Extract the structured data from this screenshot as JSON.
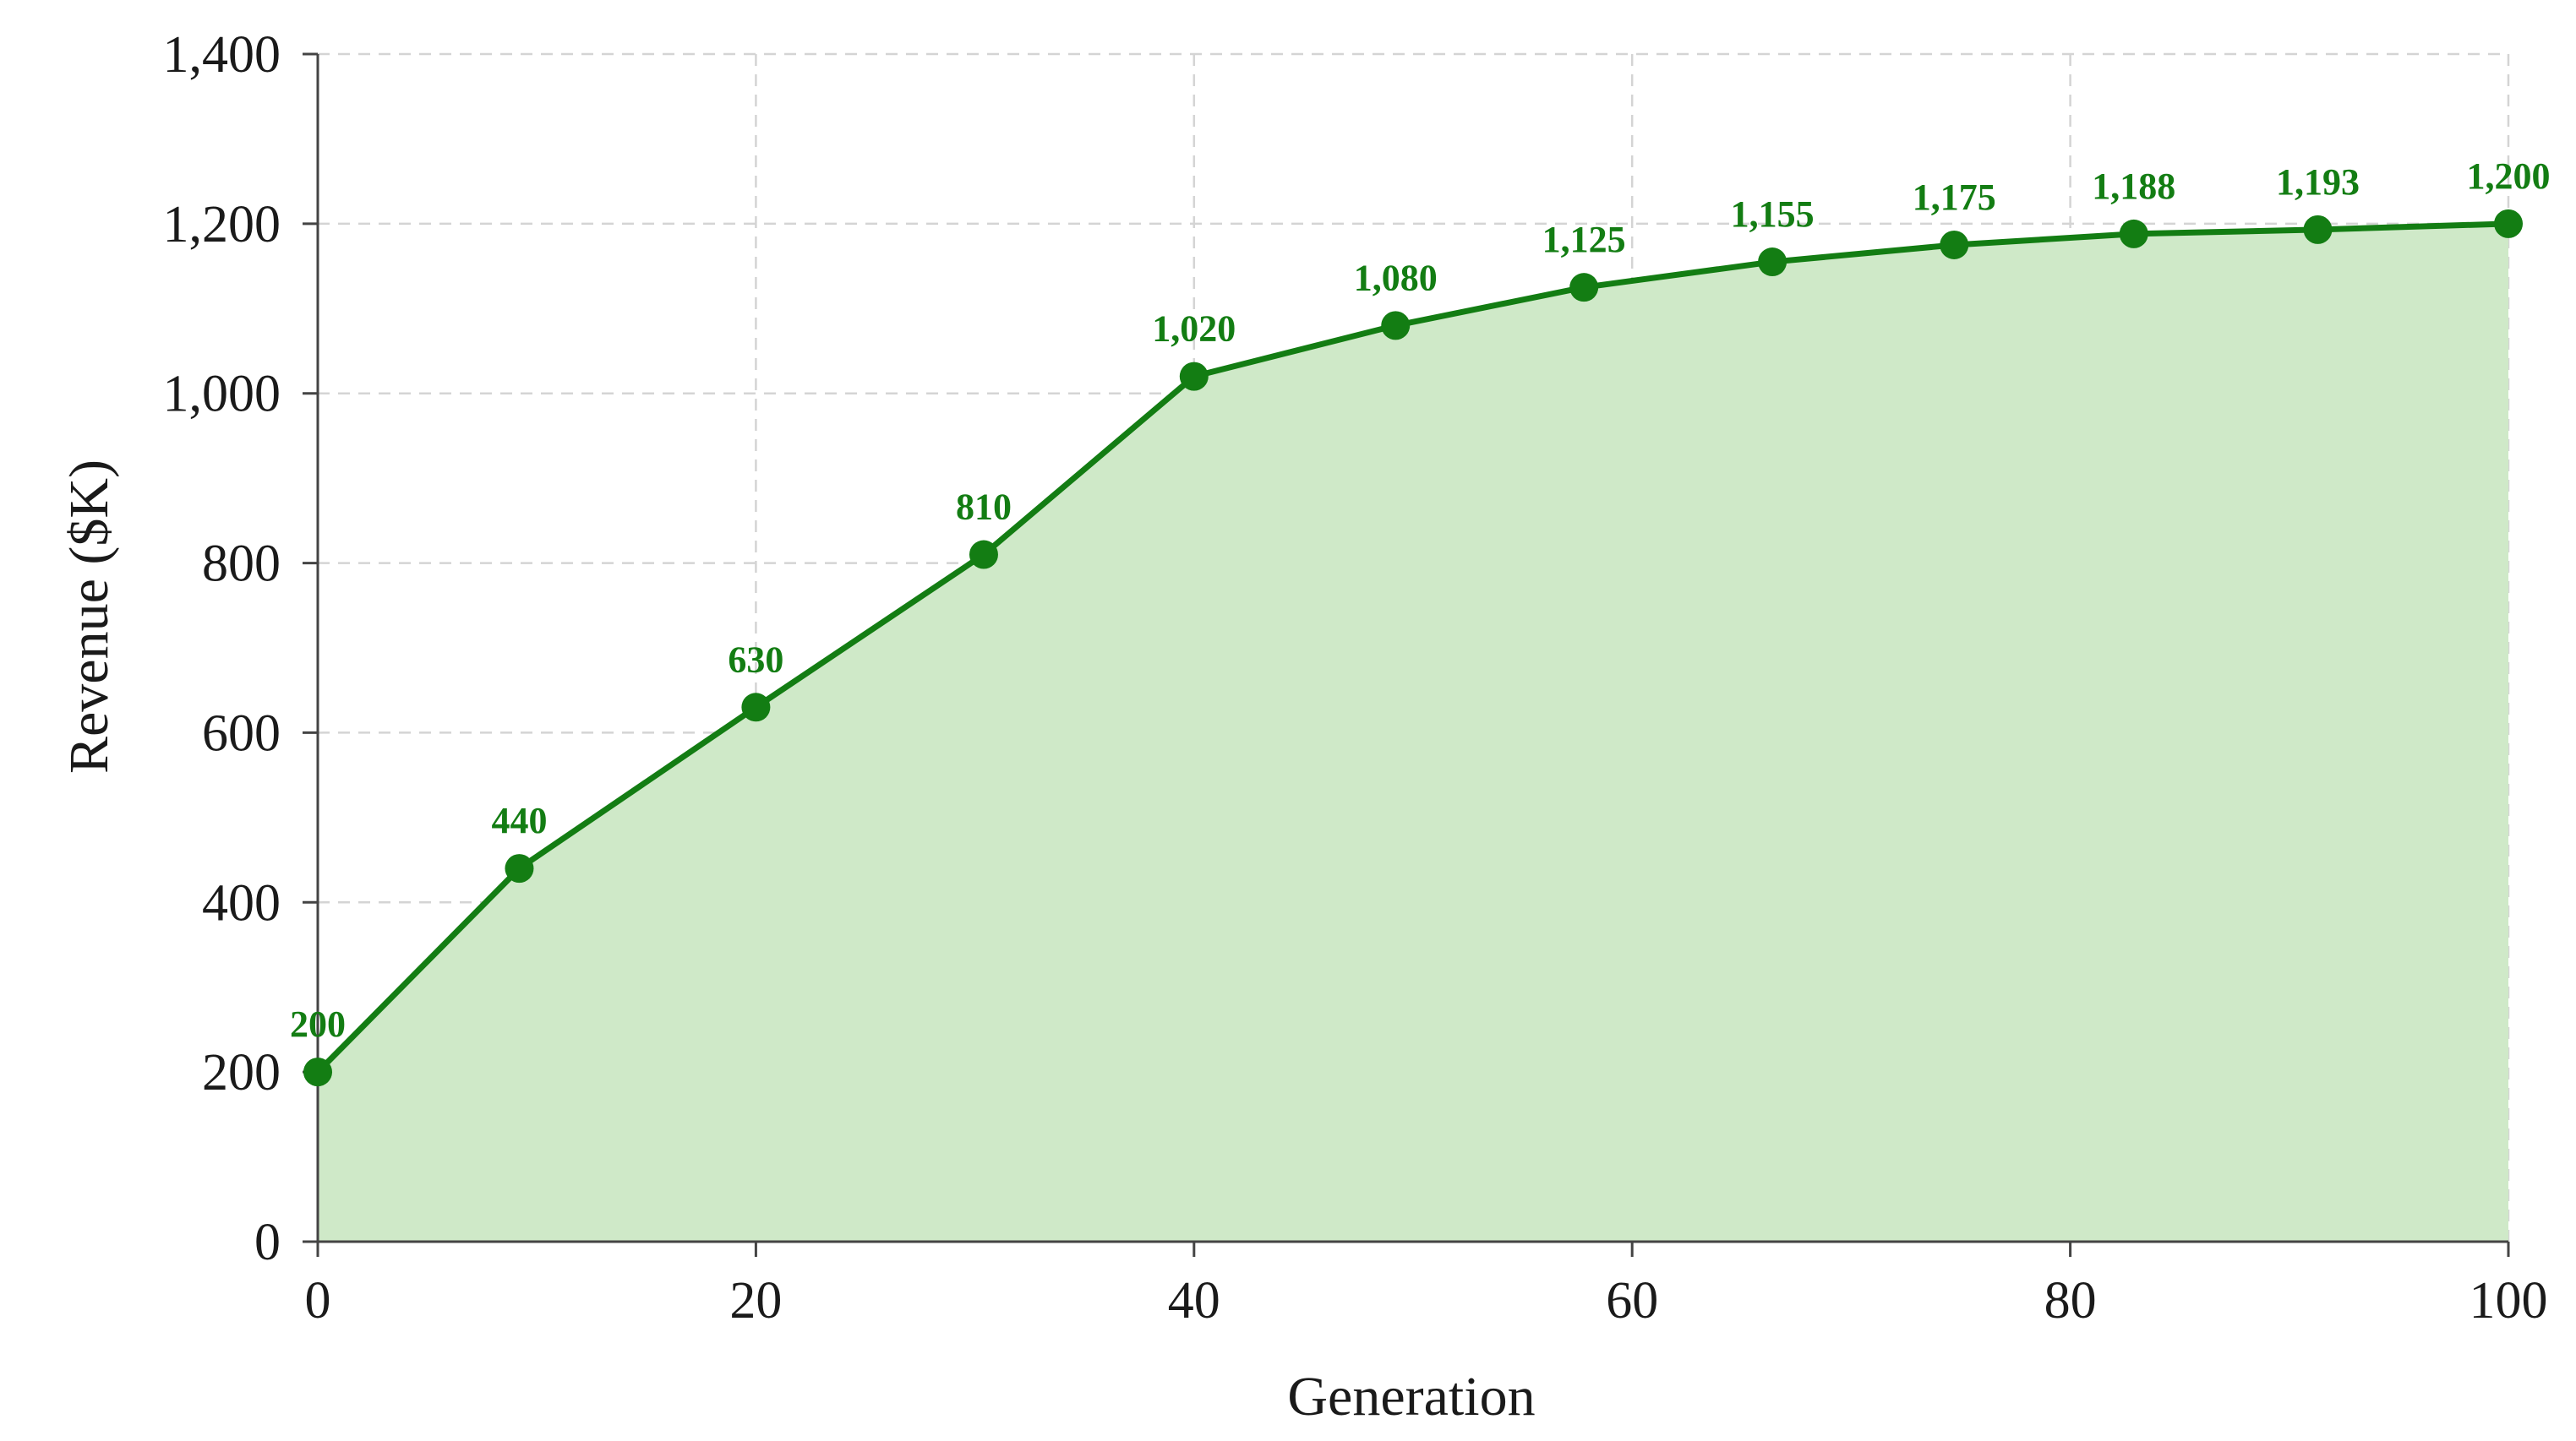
{
  "chart_data": {
    "type": "area",
    "title": "",
    "xlabel": "Generation",
    "ylabel": "Revenue ($K)",
    "xlim": [
      0,
      100
    ],
    "ylim": [
      0,
      1400
    ],
    "x_ticks": [
      0,
      20,
      40,
      60,
      80,
      100
    ],
    "x_tick_labels": [
      "0",
      "20",
      "40",
      "60",
      "80",
      "100"
    ],
    "y_ticks": [
      0,
      200,
      400,
      600,
      800,
      1000,
      1200,
      1400
    ],
    "y_tick_labels": [
      "0",
      "200",
      "400",
      "600",
      "800",
      "1,000",
      "1,200",
      "1,400"
    ],
    "grid": true,
    "legend": "none",
    "series": [
      {
        "x": [
          0,
          9.2,
          20,
          30.4,
          40,
          49.2,
          57.8,
          66.4,
          74.7,
          82.9,
          91.3,
          100
        ],
        "values": [
          200,
          440,
          630,
          810,
          1020,
          1080,
          1125,
          1155,
          1175,
          1188,
          1193,
          1200
        ],
        "labels": [
          "200",
          "440",
          "630",
          "810",
          "1,020",
          "1,080",
          "1,125",
          "1,155",
          "1,175",
          "1,188",
          "1,193",
          "1,200"
        ],
        "line_color": "#137d13",
        "fill_color": "#cfe9c8",
        "marker_color": "#137d13"
      }
    ],
    "colors": {
      "grid": "#d4d4d4",
      "axis": "#444444",
      "text": "#1a1a1a",
      "label": "#137d13"
    }
  }
}
